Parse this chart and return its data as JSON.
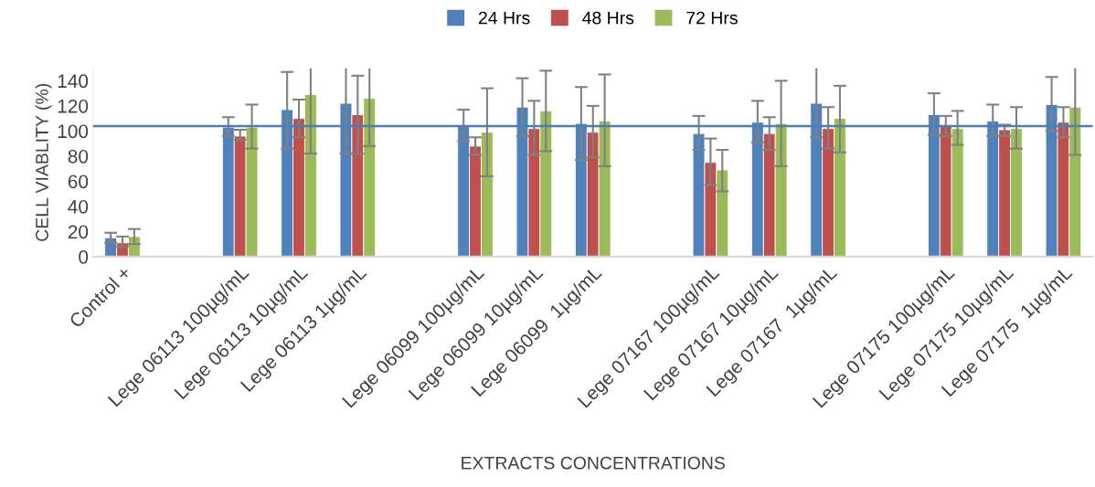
{
  "chart_data": {
    "type": "bar",
    "xlabel": "EXTRACTS CONCENTRATIONS",
    "ylabel": "CELL VIABLITY (%)",
    "categories": [
      "Control +",
      null,
      "Lege 06113 100µg/mL",
      "Lege 06113 10µg/mL",
      "Lege 06113 1µg/mL",
      null,
      "Lege 06099 100µg/mL",
      "Lege 06099 10µg/mL",
      "Lege 06099  1µg/mL",
      null,
      "Lege 07167 100µg/mL",
      "Lege 07167 10µg/mL",
      "Lege 07167  1µg/mL",
      null,
      "Lege 07175 100µg/mL",
      "Lege 07175 10µg/mL",
      "Lege 07175  1µg/mL"
    ],
    "series": [
      {
        "name": "24 Hrs",
        "color": "#4f81bd",
        "values": [
          15,
          null,
          103,
          117,
          122,
          null,
          104,
          119,
          106,
          null,
          98,
          107,
          122,
          null,
          113,
          108,
          121
        ],
        "errors": [
          [
            11,
            19
          ],
          null,
          [
            96,
            111
          ],
          [
            86,
            147
          ],
          [
            82,
            150
          ],
          null,
          [
            92,
            117
          ],
          [
            96,
            142
          ],
          [
            77,
            135
          ],
          null,
          [
            85,
            112
          ],
          [
            91,
            124
          ],
          [
            95,
            150
          ],
          null,
          [
            97,
            130
          ],
          [
            96,
            121
          ],
          [
            100,
            143
          ]
        ]
      },
      {
        "name": "48 Hrs",
        "color": "#c0504d",
        "values": [
          11,
          null,
          96,
          110,
          113,
          null,
          88,
          102,
          99,
          null,
          75,
          98,
          102,
          null,
          104,
          101,
          107
        ],
        "errors": [
          [
            8,
            16
          ],
          null,
          [
            93,
            101
          ],
          [
            95,
            125
          ],
          [
            82,
            144
          ],
          null,
          [
            81,
            95
          ],
          [
            81,
            124
          ],
          [
            79,
            120
          ],
          null,
          [
            57,
            94
          ],
          [
            85,
            111
          ],
          [
            86,
            119
          ],
          null,
          [
            96,
            112
          ],
          [
            96,
            105
          ],
          [
            95,
            119
          ]
        ]
      },
      {
        "name": "72 Hrs",
        "color": "#9bbb59",
        "values": [
          16,
          null,
          103,
          129,
          126,
          null,
          99,
          116,
          108,
          null,
          69,
          106,
          110,
          null,
          102,
          102,
          119
        ],
        "errors": [
          [
            10,
            22
          ],
          null,
          [
            86,
            121
          ],
          [
            82,
            150
          ],
          [
            88,
            150
          ],
          null,
          [
            64,
            134
          ],
          [
            84,
            148
          ],
          [
            72,
            145
          ],
          null,
          [
            52,
            85
          ],
          [
            72,
            140
          ],
          [
            83,
            136
          ],
          null,
          [
            89,
            116
          ],
          [
            86,
            119
          ],
          [
            81,
            150
          ]
        ]
      }
    ],
    "ylim": [
      0,
      150
    ],
    "yticks": [
      0,
      20,
      40,
      60,
      80,
      100,
      120,
      140
    ],
    "ref_lines": [
      {
        "axis": "y",
        "value": 104,
        "color": "#4a7ebb"
      }
    ],
    "legend": "top",
    "grid": false
  }
}
